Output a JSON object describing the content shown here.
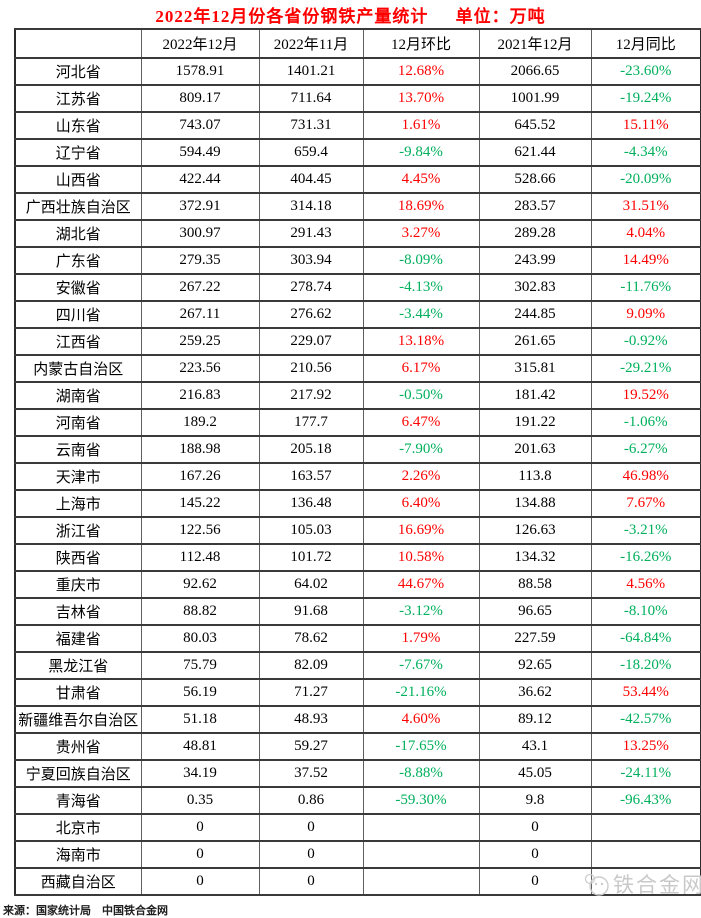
{
  "header": {
    "title": "2022年12月份各省份钢铁产量统计",
    "unit": "单位：万吨"
  },
  "chart_data": {
    "type": "table",
    "title": "2022年12月份各省份钢铁产量统计 单位：万吨",
    "columns": [
      "",
      "2022年12月",
      "2022年11月",
      "12月环比",
      "2021年12月",
      "12月同比"
    ],
    "rows": [
      [
        "河北省",
        "1578.91",
        "1401.21",
        "12.68%",
        "2066.65",
        "-23.60%"
      ],
      [
        "江苏省",
        "809.17",
        "711.64",
        "13.70%",
        "1001.99",
        "-19.24%"
      ],
      [
        "山东省",
        "743.07",
        "731.31",
        "1.61%",
        "645.52",
        "15.11%"
      ],
      [
        "辽宁省",
        "594.49",
        "659.4",
        "-9.84%",
        "621.44",
        "-4.34%"
      ],
      [
        "山西省",
        "422.44",
        "404.45",
        "4.45%",
        "528.66",
        "-20.09%"
      ],
      [
        "广西壮族自治区",
        "372.91",
        "314.18",
        "18.69%",
        "283.57",
        "31.51%"
      ],
      [
        "湖北省",
        "300.97",
        "291.43",
        "3.27%",
        "289.28",
        "4.04%"
      ],
      [
        "广东省",
        "279.35",
        "303.94",
        "-8.09%",
        "243.99",
        "14.49%"
      ],
      [
        "安徽省",
        "267.22",
        "278.74",
        "-4.13%",
        "302.83",
        "-11.76%"
      ],
      [
        "四川省",
        "267.11",
        "276.62",
        "-3.44%",
        "244.85",
        "9.09%"
      ],
      [
        "江西省",
        "259.25",
        "229.07",
        "13.18%",
        "261.65",
        "-0.92%"
      ],
      [
        "内蒙古自治区",
        "223.56",
        "210.56",
        "6.17%",
        "315.81",
        "-29.21%"
      ],
      [
        "湖南省",
        "216.83",
        "217.92",
        "-0.50%",
        "181.42",
        "19.52%"
      ],
      [
        "河南省",
        "189.2",
        "177.7",
        "6.47%",
        "191.22",
        "-1.06%"
      ],
      [
        "云南省",
        "188.98",
        "205.18",
        "-7.90%",
        "201.63",
        "-6.27%"
      ],
      [
        "天津市",
        "167.26",
        "163.57",
        "2.26%",
        "113.8",
        "46.98%"
      ],
      [
        "上海市",
        "145.22",
        "136.48",
        "6.40%",
        "134.88",
        "7.67%"
      ],
      [
        "浙江省",
        "122.56",
        "105.03",
        "16.69%",
        "126.63",
        "-3.21%"
      ],
      [
        "陕西省",
        "112.48",
        "101.72",
        "10.58%",
        "134.32",
        "-16.26%"
      ],
      [
        "重庆市",
        "92.62",
        "64.02",
        "44.67%",
        "88.58",
        "4.56%"
      ],
      [
        "吉林省",
        "88.82",
        "91.68",
        "-3.12%",
        "96.65",
        "-8.10%"
      ],
      [
        "福建省",
        "80.03",
        "78.62",
        "1.79%",
        "227.59",
        "-64.84%"
      ],
      [
        "黑龙江省",
        "75.79",
        "82.09",
        "-7.67%",
        "92.65",
        "-18.20%"
      ],
      [
        "甘肃省",
        "56.19",
        "71.27",
        "-21.16%",
        "36.62",
        "53.44%"
      ],
      [
        "新疆维吾尔自治区",
        "51.18",
        "48.93",
        "4.60%",
        "89.12",
        "-42.57%"
      ],
      [
        "贵州省",
        "48.81",
        "59.27",
        "-17.65%",
        "43.1",
        "13.25%"
      ],
      [
        "宁夏回族自治区",
        "34.19",
        "37.52",
        "-8.88%",
        "45.05",
        "-24.11%"
      ],
      [
        "青海省",
        "0.35",
        "0.86",
        "-59.30%",
        "9.8",
        "-96.43%"
      ],
      [
        "北京市",
        "0",
        "0",
        "",
        "0",
        ""
      ],
      [
        "海南市",
        "0",
        "0",
        "",
        "0",
        ""
      ],
      [
        "西藏自治区",
        "0",
        "0",
        "",
        "0",
        ""
      ]
    ]
  },
  "footer": {
    "source": "来源：国家统计局　中国铁合金网"
  },
  "watermark": {
    "text": "铁合金网"
  },
  "colors": {
    "title": "#FF0000",
    "increase": "#FF0000",
    "decrease": "#00B05C"
  }
}
